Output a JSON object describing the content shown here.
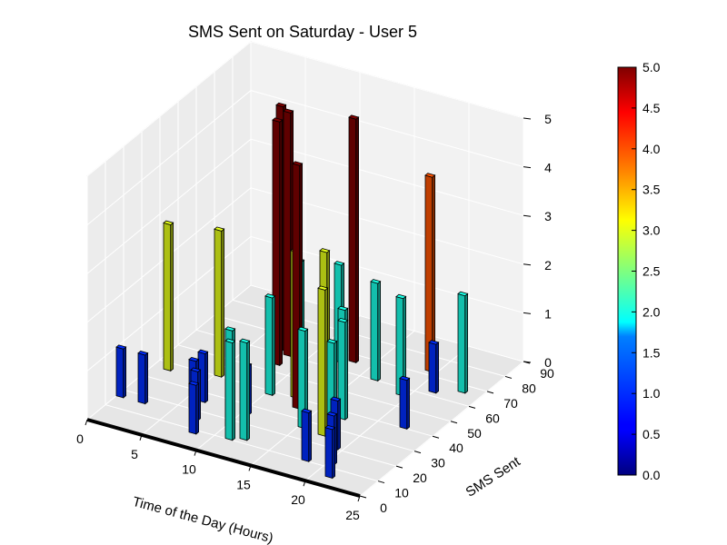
{
  "chart_data": {
    "type": "bar3d",
    "title": "SMS Sent on Saturday - User 5",
    "xlabel": "Time of the Day (Hours)",
    "ylabel": "SMS Sent",
    "zlabel": "",
    "xlim": [
      0,
      25
    ],
    "ylim": [
      0,
      90
    ],
    "zlim": [
      0,
      5
    ],
    "x_ticks": [
      "0",
      "5",
      "10",
      "15",
      "20",
      "25"
    ],
    "y_ticks": [
      "0",
      "10",
      "20",
      "30",
      "40",
      "50",
      "60",
      "70",
      "80",
      "90"
    ],
    "z_ticks": [
      "0",
      "1",
      "2",
      "3",
      "4",
      "5"
    ],
    "grid": true,
    "colormap": "jet",
    "colorbar": {
      "min": 0,
      "max": 5,
      "ticks": [
        "0.0",
        "0.5",
        "1.0",
        "1.5",
        "2.0",
        "2.5",
        "3.0",
        "3.5",
        "4.0",
        "4.5",
        "5.0"
      ]
    },
    "bars": [
      {
        "x": 0,
        "y": 16,
        "z": 1
      },
      {
        "x": 1,
        "y": 36,
        "z": 3
      },
      {
        "x": 2,
        "y": 16,
        "z": 1
      },
      {
        "x": 5,
        "y": 40,
        "z": 3
      },
      {
        "x": 6,
        "y": 25,
        "z": 1
      },
      {
        "x": 6,
        "y": 20,
        "z": 1
      },
      {
        "x": 7,
        "y": 15,
        "z": 1
      },
      {
        "x": 8,
        "y": 8,
        "z": 1
      },
      {
        "x": 7,
        "y": 62,
        "z": 5
      },
      {
        "x": 8,
        "y": 60,
        "z": 5
      },
      {
        "x": 8,
        "y": 54,
        "z": 5
      },
      {
        "x": 9,
        "y": 60,
        "z": 2
      },
      {
        "x": 10,
        "y": 38,
        "z": 2
      },
      {
        "x": 10,
        "y": 25,
        "z": 1
      },
      {
        "x": 10,
        "y": 16,
        "z": 2
      },
      {
        "x": 11,
        "y": 10,
        "z": 2
      },
      {
        "x": 12,
        "y": 12,
        "z": 2
      },
      {
        "x": 12,
        "y": 40,
        "z": 3
      },
      {
        "x": 12,
        "y": 64,
        "z": 2
      },
      {
        "x": 13,
        "y": 66,
        "z": 5
      },
      {
        "x": 13,
        "y": 35,
        "z": 5
      },
      {
        "x": 14,
        "y": 44,
        "z": 3
      },
      {
        "x": 15,
        "y": 26,
        "z": 2
      },
      {
        "x": 16,
        "y": 60,
        "z": 2
      },
      {
        "x": 16,
        "y": 42,
        "z": 2
      },
      {
        "x": 17,
        "y": 36,
        "z": 2
      },
      {
        "x": 17,
        "y": 25,
        "z": 3
      },
      {
        "x": 18,
        "y": 24,
        "z": 2
      },
      {
        "x": 18,
        "y": 10,
        "z": 1
      },
      {
        "x": 19,
        "y": 72,
        "z": 4
      },
      {
        "x": 19,
        "y": 56,
        "z": 2
      },
      {
        "x": 19,
        "y": 20,
        "z": 1
      },
      {
        "x": 20,
        "y": 12,
        "z": 1
      },
      {
        "x": 21,
        "y": 5,
        "z": 1
      },
      {
        "x": 21,
        "y": 62,
        "z": 1
      },
      {
        "x": 22,
        "y": 40,
        "z": 1
      },
      {
        "x": 23,
        "y": 66,
        "z": 2
      }
    ]
  }
}
